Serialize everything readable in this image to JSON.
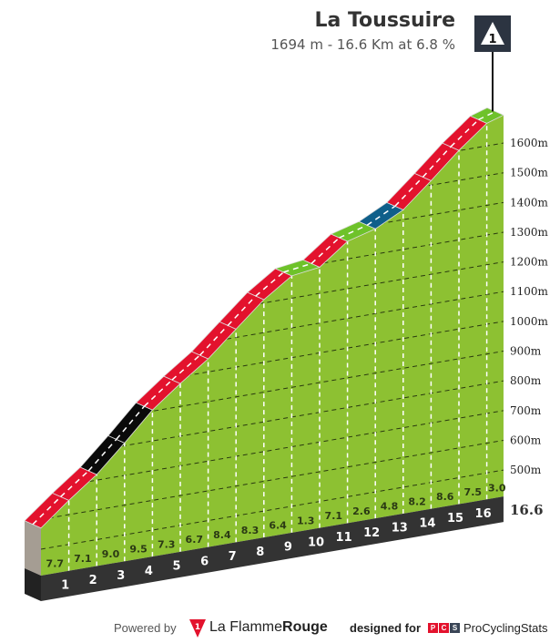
{
  "header": {
    "title": "La Toussuire",
    "subtitle": "1694 m - 16.6 Km at 6.8 %",
    "summit_marker": {
      "icon": "category-triangle-icon",
      "label": "1"
    }
  },
  "chart_data": {
    "type": "area",
    "title": "La Toussuire",
    "distance_km": 16.6,
    "summit_elevation_m": 1694,
    "average_gradient_pct": 6.8,
    "segments": [
      {
        "km_label": "1",
        "gradient": "7.7"
      },
      {
        "km_label": "2",
        "gradient": "7.1"
      },
      {
        "km_label": "3",
        "gradient": "9.0"
      },
      {
        "km_label": "4",
        "gradient": "9.5"
      },
      {
        "km_label": "5",
        "gradient": "7.3"
      },
      {
        "km_label": "6",
        "gradient": "6.7"
      },
      {
        "km_label": "7",
        "gradient": "8.4"
      },
      {
        "km_label": "8",
        "gradient": "8.3"
      },
      {
        "km_label": "9",
        "gradient": "6.4"
      },
      {
        "km_label": "10",
        "gradient": "1.3"
      },
      {
        "km_label": "11",
        "gradient": "7.1"
      },
      {
        "km_label": "12",
        "gradient": "2.6"
      },
      {
        "km_label": "13",
        "gradient": "4.8"
      },
      {
        "km_label": "14",
        "gradient": "8.2"
      },
      {
        "km_label": "15",
        "gradient": "8.6"
      },
      {
        "km_label": "16",
        "gradient": "7.5"
      },
      {
        "km_label": "",
        "gradient": "3.0"
      }
    ],
    "end_label": "16.6",
    "y_ticks": [
      "500m",
      "600m",
      "700m",
      "800m",
      "900m",
      "1000m",
      "1100m",
      "1200m",
      "1300m",
      "1400m",
      "1500m",
      "1600m"
    ],
    "y_tick_values": [
      500,
      600,
      700,
      800,
      900,
      1000,
      1100,
      1200,
      1300,
      1400,
      1500,
      1600
    ],
    "grid": true,
    "colors": {
      "profile": "#8dc132",
      "gradient_0_3": "#6ec22a",
      "gradient_3_6": "#0f5f8a",
      "gradient_6_9": "#e3122d",
      "gradient_9_plus": "#0a0a0a",
      "base": "#333333",
      "side": "#a59d93"
    }
  },
  "footer": {
    "powered_by": "Powered by",
    "lfr_brand_a": "La Flamme",
    "lfr_brand_b": "Rouge",
    "lfr_logo_text": "1",
    "designed_for": "designed for",
    "pcs_logo": [
      "P",
      "C",
      "S"
    ],
    "pcs_brand": "ProCyclingStats"
  }
}
